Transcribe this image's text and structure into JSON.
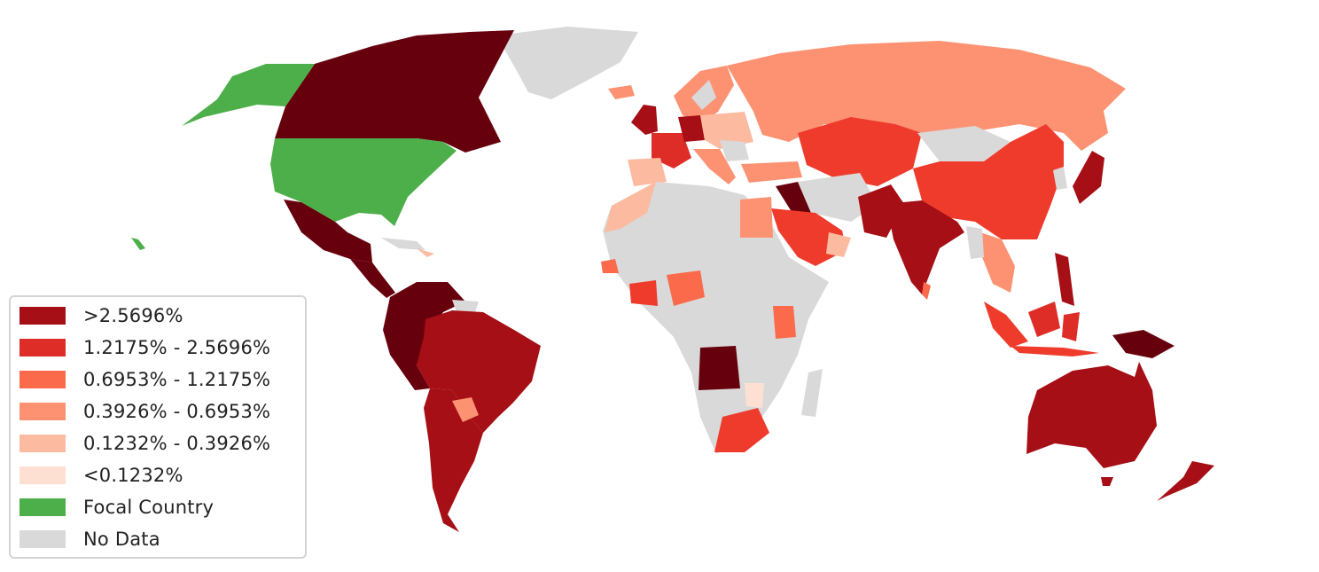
{
  "colors": {
    "background": "#ffffff",
    "no_data": "#d9d9d9",
    "focal": "#4daf4a",
    "ocean": "#ffffff"
  },
  "legend": {
    "items": [
      {
        "label": ">2.5696%",
        "color": "#a50f15"
      },
      {
        "label": "1.2175% - 2.5696%",
        "color": "#de2d26"
      },
      {
        "label": "0.6953% - 1.2175%",
        "color": "#fb6a4a"
      },
      {
        "label": "0.3926% - 0.6953%",
        "color": "#fc9272"
      },
      {
        "label": "0.1232% - 0.3926%",
        "color": "#fcbba1"
      },
      {
        "label": "<0.1232%",
        "color": "#fee0d2"
      },
      {
        "label": "Focal Country",
        "color": "#4daf4a"
      },
      {
        "label": "No Data",
        "color": "#d9d9d9"
      }
    ]
  }
}
